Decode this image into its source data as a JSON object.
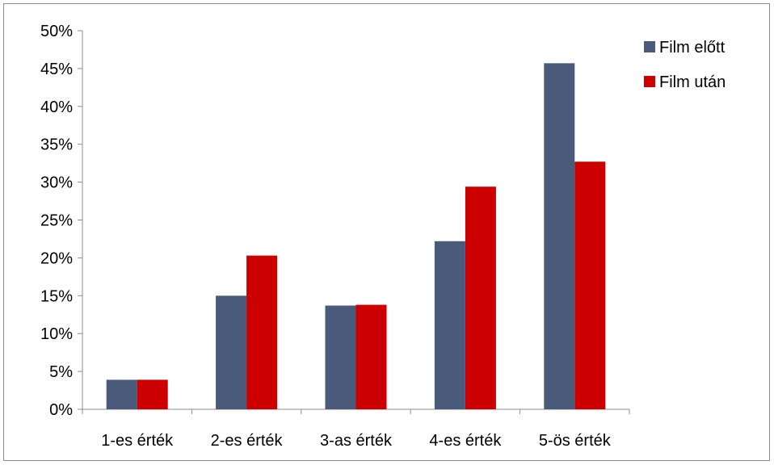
{
  "chart_data": {
    "type": "bar",
    "categories": [
      "1-es érték",
      "2-es érték",
      "3-as érték",
      "4-es érték",
      "5-ös érték"
    ],
    "series": [
      {
        "name": "Film előtt",
        "values": [
          3.9,
          15.0,
          13.7,
          22.2,
          45.7
        ],
        "color": "#4a5a7a"
      },
      {
        "name": "Film után",
        "values": [
          3.9,
          20.3,
          13.8,
          29.4,
          32.7
        ],
        "color": "#cc0000"
      }
    ],
    "ylim": [
      0,
      50
    ],
    "yticks": [
      0,
      5,
      10,
      15,
      20,
      25,
      30,
      35,
      40,
      45,
      50
    ],
    "ytick_labels": [
      "0%",
      "5%",
      "10%",
      "15%",
      "20%",
      "25%",
      "30%",
      "35%",
      "40%",
      "45%",
      "50%"
    ],
    "title": "",
    "xlabel": "",
    "ylabel": "",
    "grid": false,
    "legend_position": "top-right"
  }
}
